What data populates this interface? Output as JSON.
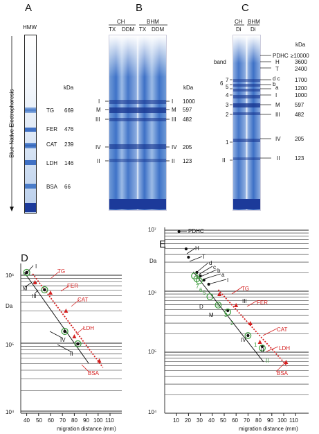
{
  "panels": {
    "A": {
      "letter": "A",
      "header": "HMW",
      "y_label": "Blue-Native Electrophoresis",
      "unit": "kDa",
      "markers": [
        {
          "name": "TG",
          "kda": "669"
        },
        {
          "name": "FER",
          "kda": "476"
        },
        {
          "name": "CAT",
          "kda": "239"
        },
        {
          "name": "LDH",
          "kda": "146"
        },
        {
          "name": "BSA",
          "kda": "66"
        }
      ]
    },
    "B": {
      "letter": "B",
      "groups": [
        "CH",
        "BHM"
      ],
      "lanes": [
        "TX",
        "DDM",
        "TX",
        "DDM"
      ],
      "unit": "kDa",
      "complexes": [
        {
          "name": "I",
          "kda": "1000"
        },
        {
          "name": "M",
          "kda": "597"
        },
        {
          "name": "III",
          "kda": "482"
        },
        {
          "name": "IV",
          "kda": "205"
        },
        {
          "name": "II",
          "kda": "123"
        }
      ]
    },
    "C": {
      "letter": "C",
      "groups": [
        "CH",
        "BHM"
      ],
      "lanes": [
        "Di",
        "Di"
      ],
      "band_label": "band",
      "unit": "kDa",
      "left_numbers": [
        "7",
        "6",
        "5",
        "4",
        "3",
        "2",
        "1",
        "II"
      ],
      "complexes": [
        {
          "name": "PDHC",
          "kda": "≥10000"
        },
        {
          "name": "H",
          "kda": "3600"
        },
        {
          "name": "T",
          "kda": "2400"
        },
        {
          "name": "d c",
          "kda": "1700"
        },
        {
          "name": "b",
          "kda": ""
        },
        {
          "name": "a",
          "kda": "1200"
        },
        {
          "name": "I",
          "kda": "1000"
        },
        {
          "name": "M",
          "kda": "597"
        },
        {
          "name": "III",
          "kda": "482"
        },
        {
          "name": "IV",
          "kda": "205"
        },
        {
          "name": "II",
          "kda": "123"
        }
      ]
    },
    "D": {
      "letter": "D",
      "y_axis_label": "Da",
      "x_axis_label": "migration distance (mm)",
      "y_ticks": [
        "10⁶",
        "10⁵",
        "10⁴"
      ],
      "x_ticks": [
        "40",
        "50",
        "60",
        "70",
        "80",
        "90",
        "100",
        "110"
      ],
      "complex_labels": [
        "I",
        "M",
        "III",
        "IV",
        "II"
      ],
      "marker_labels": [
        "TG",
        "FER",
        "CAT",
        "LDH",
        "BSA"
      ]
    },
    "E": {
      "letter": "E",
      "y_axis_label": "Da",
      "x_axis_label": "migration distance (mm)",
      "y_ticks": [
        "10⁷",
        "10⁶",
        "10⁵",
        "10⁴"
      ],
      "x_ticks": [
        "10",
        "20",
        "30",
        "40",
        "50",
        "60",
        "70",
        "80",
        "90",
        "100",
        "110"
      ],
      "complex_labels": [
        "PDHC",
        "H",
        "T",
        "d",
        "c",
        "b",
        "a",
        "I",
        "D",
        "III",
        "M",
        "IV",
        "II"
      ],
      "marker_labels": [
        "TG",
        "FER",
        "CAT",
        "LDH",
        "BSA"
      ],
      "band_numbers": [
        "7",
        "6",
        "5",
        "4",
        "3",
        "2",
        "1",
        "II"
      ]
    }
  },
  "colors": {
    "marker_red": "#d42020",
    "band_green": "#3a9a3a",
    "gel_blue": "#2f6fc4",
    "gel_dark": "#1c3a9a"
  }
}
